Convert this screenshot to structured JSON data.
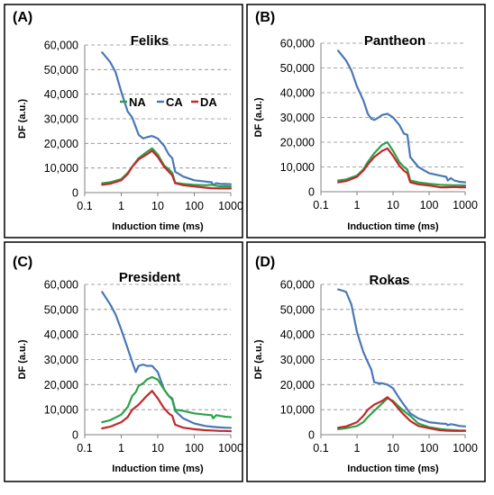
{
  "colors": {
    "NA": "#2ca24a",
    "CA": "#4a78b5",
    "DA": "#c2282b"
  },
  "legend": [
    {
      "key": "NA",
      "label": "NA"
    },
    {
      "key": "CA",
      "label": "CA"
    },
    {
      "key": "DA",
      "label": "DA"
    }
  ],
  "chart_data": [
    {
      "type": "line",
      "panel_label": "(A)",
      "title": "Feliks",
      "xlabel": "Induction time (ms)",
      "ylabel": "DF (a.u.)",
      "x_scale": "log",
      "xlim": [
        0.1,
        1000
      ],
      "ylim": [
        0,
        60000
      ],
      "x_ticks": [
        "0.1",
        "1",
        "10",
        "100",
        "1000"
      ],
      "y_ticks": [
        "0",
        "10,000",
        "20,000",
        "30,000",
        "40,000",
        "50,000",
        "60,000"
      ],
      "grid": "horizontal",
      "legend_position": "right",
      "series": [
        {
          "name": "NA",
          "x": [
            0.3,
            0.5,
            1,
            1.5,
            2,
            3,
            5,
            7,
            10,
            15,
            20,
            25,
            30,
            50,
            100,
            200,
            300,
            400,
            500,
            700,
            1000
          ],
          "y": [
            3800,
            4200,
            5500,
            8000,
            10500,
            14000,
            16500,
            18000,
            15500,
            11000,
            9500,
            8000,
            4000,
            3500,
            3200,
            3000,
            3200,
            2800,
            2600,
            2600,
            2500
          ]
        },
        {
          "name": "CA",
          "x": [
            0.3,
            0.5,
            0.7,
            1,
            1.5,
            2,
            3,
            4,
            5,
            7,
            10,
            15,
            20,
            25,
            30,
            50,
            100,
            200,
            300,
            330,
            400,
            500,
            700,
            1000
          ],
          "y": [
            57000,
            53000,
            49000,
            41000,
            33000,
            30500,
            23500,
            22000,
            22500,
            23000,
            22000,
            19000,
            15500,
            14000,
            8500,
            6500,
            5000,
            4500,
            4200,
            3000,
            3800,
            3600,
            3500,
            3400
          ]
        },
        {
          "name": "DA",
          "x": [
            0.3,
            0.5,
            1,
            1.5,
            2,
            3,
            5,
            7,
            10,
            15,
            20,
            25,
            30,
            50,
            100,
            200,
            300,
            500,
            700,
            1000
          ],
          "y": [
            3200,
            3600,
            5000,
            7500,
            10500,
            13500,
            15500,
            17000,
            14500,
            10500,
            8500,
            7000,
            3800,
            3000,
            2500,
            2000,
            1800,
            1700,
            1700,
            1700
          ]
        }
      ]
    },
    {
      "type": "line",
      "panel_label": "(B)",
      "title": "Pantheon",
      "xlabel": "Induction time (ms)",
      "ylabel": "DF (a.u.)",
      "x_scale": "log",
      "xlim": [
        0.1,
        1000
      ],
      "ylim": [
        0,
        60000
      ],
      "x_ticks": [
        "0.1",
        "1",
        "10",
        "100",
        "1000"
      ],
      "y_ticks": [
        "0",
        "10,000",
        "20,000",
        "30,000",
        "40,000",
        "50,000",
        "60,000"
      ],
      "grid": "horizontal",
      "series": [
        {
          "name": "NA",
          "x": [
            0.3,
            0.5,
            1,
            1.5,
            2,
            3,
            5,
            7,
            10,
            15,
            20,
            25,
            30,
            50,
            100,
            200,
            300,
            500,
            700,
            1000
          ],
          "y": [
            4500,
            5000,
            6500,
            9000,
            12000,
            15500,
            19000,
            20000,
            16500,
            12000,
            10000,
            9000,
            4500,
            3800,
            3200,
            2800,
            2700,
            2600,
            2600,
            2500
          ]
        },
        {
          "name": "CA",
          "x": [
            0.3,
            0.5,
            0.7,
            1,
            1.5,
            2,
            2.5,
            3,
            4,
            5,
            7,
            10,
            15,
            20,
            25,
            30,
            50,
            100,
            200,
            300,
            330,
            400,
            500,
            700,
            1000
          ],
          "y": [
            57000,
            53000,
            49000,
            42500,
            37000,
            31500,
            29500,
            29000,
            30000,
            31000,
            31500,
            30000,
            27000,
            23500,
            23000,
            14000,
            10000,
            7500,
            6500,
            6000,
            4500,
            5500,
            4500,
            4000,
            3800
          ]
        },
        {
          "name": "DA",
          "x": [
            0.3,
            0.5,
            1,
            1.5,
            2,
            3,
            5,
            7,
            10,
            15,
            20,
            25,
            30,
            50,
            100,
            200,
            300,
            500,
            700,
            1000
          ],
          "y": [
            3800,
            4300,
            6000,
            8500,
            11000,
            14000,
            16500,
            17500,
            14500,
            10500,
            8500,
            7500,
            3800,
            3000,
            2500,
            1800,
            1800,
            1900,
            1800,
            1800
          ]
        }
      ]
    },
    {
      "type": "line",
      "panel_label": "(C)",
      "title": "President",
      "xlabel": "Induction time (ms)",
      "ylabel": "DF (a.u.)",
      "x_scale": "log",
      "xlim": [
        0.1,
        1000
      ],
      "ylim": [
        0,
        60000
      ],
      "x_ticks": [
        "0.1",
        "1",
        "10",
        "100",
        "1000"
      ],
      "y_ticks": [
        "0",
        "10,000",
        "20,000",
        "30,000",
        "40,000",
        "50,000",
        "60,000"
      ],
      "grid": "horizontal",
      "series": [
        {
          "name": "NA",
          "x": [
            0.3,
            0.5,
            1,
            1.5,
            2,
            2.5,
            3,
            4,
            5,
            7,
            10,
            15,
            20,
            25,
            30,
            50,
            100,
            200,
            300,
            330,
            400,
            500,
            700,
            1000
          ],
          "y": [
            5000,
            5800,
            8000,
            11000,
            15500,
            17000,
            19500,
            20500,
            22000,
            23000,
            22000,
            18000,
            15500,
            14500,
            10000,
            9500,
            8500,
            8000,
            7800,
            6500,
            7800,
            7500,
            7200,
            7000
          ]
        },
        {
          "name": "CA",
          "x": [
            0.3,
            0.5,
            0.7,
            1,
            1.5,
            2,
            2.5,
            3,
            4,
            5,
            7,
            10,
            15,
            20,
            25,
            30,
            50,
            100,
            200,
            300,
            400,
            500,
            700,
            1000
          ],
          "y": [
            57000,
            52000,
            48000,
            42000,
            34500,
            29000,
            25000,
            27500,
            28000,
            27500,
            27500,
            25000,
            18000,
            15500,
            14000,
            9500,
            6500,
            4500,
            3500,
            3200,
            3000,
            2900,
            2800,
            2700
          ]
        },
        {
          "name": "DA",
          "x": [
            0.3,
            0.5,
            1,
            1.5,
            2,
            3,
            5,
            7,
            10,
            15,
            20,
            25,
            30,
            50,
            100,
            200,
            300,
            500,
            700,
            1000
          ],
          "y": [
            2500,
            3200,
            5000,
            7000,
            10000,
            12000,
            15500,
            17500,
            14500,
            10500,
            8500,
            7500,
            4000,
            2800,
            2200,
            1800,
            1700,
            1500,
            1500,
            1400
          ]
        }
      ]
    },
    {
      "type": "line",
      "panel_label": "(D)",
      "title": "Rokas",
      "xlabel": "Induction time (ms)",
      "ylabel": "DF (a.u.)",
      "x_scale": "log",
      "xlim": [
        0.1,
        1000
      ],
      "ylim": [
        0,
        60000
      ],
      "x_ticks": [
        "0.1",
        "1",
        "10",
        "100",
        "1000"
      ],
      "y_ticks": [
        "0",
        "10,000",
        "20,000",
        "30,000",
        "40,000",
        "50,000",
        "60,000"
      ],
      "grid": "horizontal",
      "series": [
        {
          "name": "NA",
          "x": [
            0.3,
            0.5,
            1,
            1.5,
            2,
            3,
            5,
            7,
            10,
            15,
            20,
            30,
            50,
            100,
            200,
            300,
            500,
            700,
            1000
          ],
          "y": [
            2200,
            2600,
            3500,
            5000,
            7000,
            9500,
            12500,
            14500,
            13500,
            11000,
            9500,
            7500,
            4500,
            3000,
            2300,
            2000,
            1800,
            1700,
            1700
          ]
        },
        {
          "name": "CA",
          "x": [
            0.3,
            0.4,
            0.5,
            0.7,
            1,
            1.5,
            2,
            2.5,
            3,
            4,
            5,
            7,
            10,
            15,
            20,
            30,
            50,
            100,
            200,
            300,
            330,
            400,
            500,
            700,
            1000
          ],
          "y": [
            58000,
            57500,
            57000,
            52000,
            41000,
            33000,
            29000,
            26000,
            21000,
            20500,
            20500,
            20000,
            18500,
            14500,
            12000,
            8500,
            6500,
            5000,
            4500,
            4300,
            3800,
            4200,
            4000,
            3500,
            3300
          ]
        },
        {
          "name": "DA",
          "x": [
            0.3,
            0.5,
            1,
            1.5,
            2,
            3,
            5,
            7,
            10,
            15,
            20,
            30,
            50,
            100,
            200,
            300,
            500,
            700,
            1000
          ],
          "y": [
            2800,
            3300,
            5000,
            7500,
            10000,
            12000,
            13500,
            15000,
            13000,
            10000,
            8000,
            5500,
            3500,
            2600,
            1800,
            1600,
            1500,
            1500,
            1500
          ]
        }
      ]
    }
  ]
}
